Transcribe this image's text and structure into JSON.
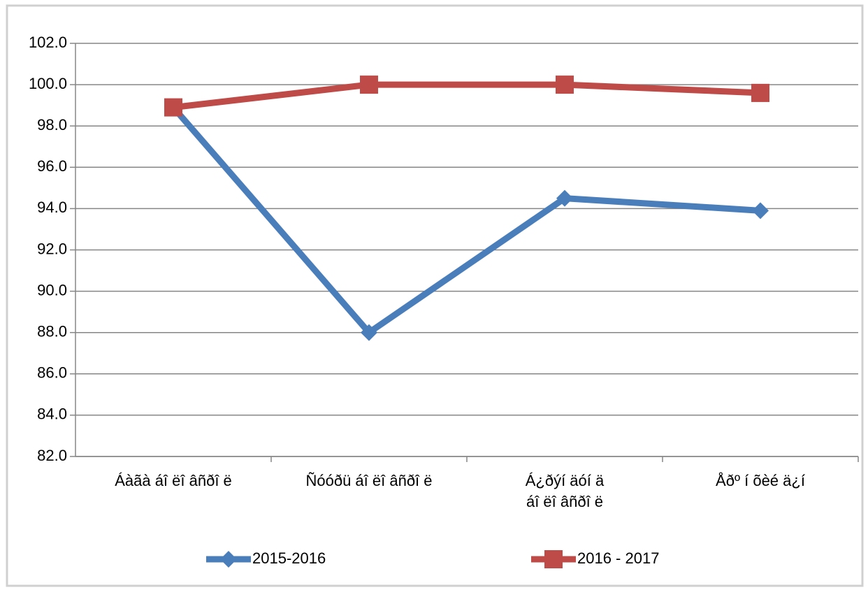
{
  "chart_data": {
    "type": "line",
    "categories": [
      "Áàãà áî ëî âñðî ë",
      "Ñóóðü áî ëî âñðî ë",
      "Á¿ðýí  äóí ä\náî ëî âñðî ë",
      "Åðº í õèé ä¿í"
    ],
    "series": [
      {
        "name": "2015-2016",
        "color": "#4a7ebb",
        "marker": "diamond",
        "values": [
          98.9,
          88.0,
          94.5,
          93.9
        ]
      },
      {
        "name": "2016 - 2017",
        "color": "#be4b48",
        "marker": "square",
        "values": [
          98.9,
          100.0,
          100.0,
          99.6
        ]
      }
    ],
    "ylim": [
      82,
      102
    ],
    "yticks": [
      {
        "value": 82,
        "label": "82.0"
      },
      {
        "value": 84,
        "label": "84.0"
      },
      {
        "value": 86,
        "label": "86.0"
      },
      {
        "value": 88,
        "label": "88.0"
      },
      {
        "value": 90,
        "label": "90.0"
      },
      {
        "value": 92,
        "label": "92.0"
      },
      {
        "value": 94,
        "label": "94.0"
      },
      {
        "value": 96,
        "label": "96.0"
      },
      {
        "value": 98,
        "label": "98.0"
      },
      {
        "value": 100,
        "label": "100.0"
      },
      {
        "value": 102,
        "label": "102.0"
      }
    ],
    "grid": true,
    "legend": "bottom"
  }
}
